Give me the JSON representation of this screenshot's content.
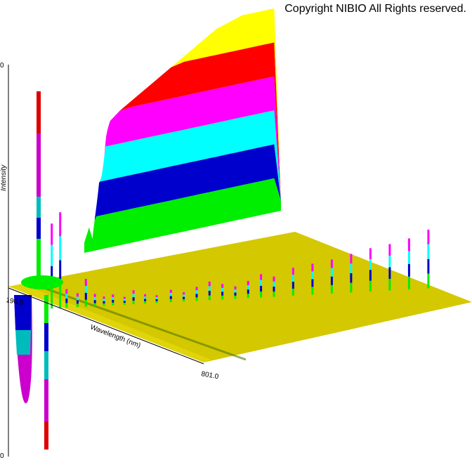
{
  "copyright": "Copyright NIBIO All Rights reserved.",
  "colors": {
    "floor": "#d4c800",
    "floor_light": "#e8dc10",
    "bands": [
      "#00ee00",
      "#0000cc",
      "#00ffff",
      "#ff00ff",
      "#ff0000",
      "#ffff00"
    ]
  },
  "chart_data": {
    "type": "area",
    "style": "3d-waterfall-spectrum",
    "xlabel": "Wavelength (nm)",
    "ylabel": "Intensity",
    "x_start_label": "190.0",
    "x_end_label": "801.0",
    "y_top_label": "0",
    "y_bottom_label": "0",
    "xlim": [
      190.0,
      801.0
    ],
    "far_slice": {
      "x": [
        190,
        205,
        215,
        222,
        228,
        232,
        236,
        240,
        244,
        248,
        252,
        256,
        258,
        262,
        266,
        270,
        300,
        340,
        380,
        420,
        460,
        500,
        520,
        540,
        560,
        580,
        600,
        620,
        640,
        660,
        680,
        700,
        720,
        740,
        760,
        780,
        801
      ],
      "y": [
        0.05,
        0.12,
        0.06,
        0.15,
        0.22,
        0.27,
        0.33,
        0.34,
        0.36,
        0.4,
        0.45,
        0.52,
        0.55,
        0.58,
        0.6,
        0.62,
        0.66,
        0.7,
        0.74,
        0.78,
        0.82,
        0.86,
        0.88,
        0.9,
        0.92,
        0.94,
        0.96,
        0.97,
        0.98,
        0.99,
        1.0,
        1.0,
        1.0,
        1.0,
        1.0,
        1.0,
        0.05
      ]
    },
    "near_slice_peaks": {
      "x": [
        205,
        218,
        228,
        245,
        258,
        272,
        286,
        300,
        318,
        332,
        350,
        368,
        390,
        410,
        430,
        450,
        470,
        490,
        510,
        530,
        550,
        580,
        610,
        640,
        670,
        700,
        730,
        760,
        790
      ],
      "y": [
        0.55,
        0.62,
        0.12,
        0.09,
        0.18,
        0.08,
        0.06,
        0.07,
        0.05,
        0.09,
        0.06,
        0.05,
        0.08,
        0.06,
        0.09,
        0.12,
        0.1,
        0.08,
        0.11,
        0.15,
        0.13,
        0.18,
        0.2,
        0.22,
        0.25,
        0.28,
        0.3,
        0.33,
        0.38
      ]
    },
    "grid": false,
    "legend": "none"
  }
}
